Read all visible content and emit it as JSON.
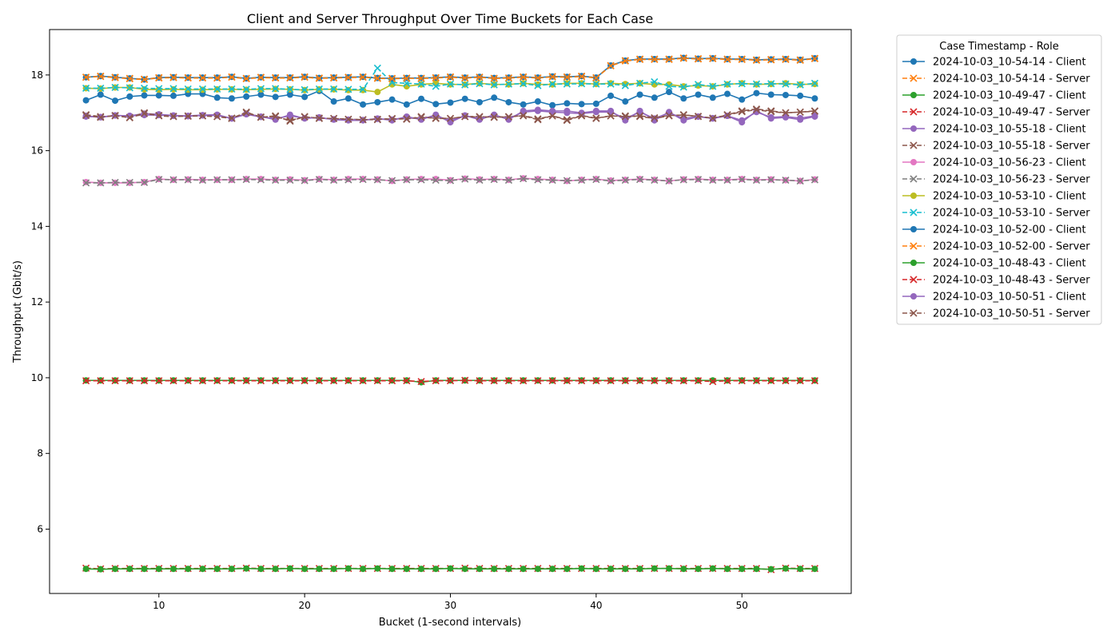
{
  "chart_data": {
    "type": "line",
    "title": "Client and Server Throughput Over Time Buckets for Each Case",
    "xlabel": "Bucket (1-second intervals)",
    "ylabel": "Throughput (Gbit/s)",
    "xlim": [
      2.5,
      57.5
    ],
    "ylim": [
      4.3,
      19.2
    ],
    "xticks": [
      10,
      20,
      30,
      40,
      50
    ],
    "yticks": [
      6,
      8,
      10,
      12,
      14,
      16,
      18
    ],
    "grid": false,
    "legend_title": "Case Timestamp - Role",
    "legend_placement": "outside-right",
    "x": [
      5,
      6,
      7,
      8,
      9,
      10,
      11,
      12,
      13,
      14,
      15,
      16,
      17,
      18,
      19,
      20,
      21,
      22,
      23,
      24,
      25,
      26,
      27,
      28,
      29,
      30,
      31,
      32,
      33,
      34,
      35,
      36,
      37,
      38,
      39,
      40,
      41,
      42,
      43,
      44,
      45,
      46,
      47,
      48,
      49,
      50,
      51,
      52,
      53,
      54,
      55
    ],
    "series": [
      {
        "name": "2024-10-03_10-54-14 - Client",
        "color": "#1f77b4",
        "style": "solid",
        "marker": "o",
        "values": [
          17.33,
          17.48,
          17.32,
          17.43,
          17.46,
          17.46,
          17.45,
          17.5,
          17.5,
          17.4,
          17.38,
          17.43,
          17.48,
          17.42,
          17.48,
          17.42,
          17.58,
          17.3,
          17.38,
          17.22,
          17.28,
          17.35,
          17.22,
          17.37,
          17.23,
          17.27,
          17.37,
          17.28,
          17.4,
          17.28,
          17.22,
          17.3,
          17.2,
          17.25,
          17.23,
          17.24,
          17.45,
          17.3,
          17.48,
          17.4,
          17.55,
          17.38,
          17.48,
          17.4,
          17.5,
          17.35,
          17.52,
          17.48,
          17.47,
          17.45,
          17.38
        ]
      },
      {
        "name": "2024-10-03_10-54-14 - Server",
        "color": "#ff7f0e",
        "style": "dashed",
        "marker": "x",
        "values": [
          17.94,
          17.97,
          17.94,
          17.91,
          17.89,
          17.93,
          17.94,
          17.93,
          17.93,
          17.92,
          17.95,
          17.91,
          17.94,
          17.93,
          17.93,
          17.95,
          17.92,
          17.93,
          17.94,
          17.95,
          17.92,
          17.91,
          17.92,
          17.91,
          17.93,
          17.95,
          17.92,
          17.94,
          17.91,
          17.92,
          17.95,
          17.92,
          17.96,
          17.95,
          17.97,
          17.93,
          18.25,
          18.38,
          18.42,
          18.42,
          18.42,
          18.45,
          18.43,
          18.44,
          18.42,
          18.42,
          18.4,
          18.41,
          18.42,
          18.4,
          18.44
        ]
      },
      {
        "name": "2024-10-03_10-49-47 - Client",
        "color": "#2ca02c",
        "style": "solid",
        "marker": "o",
        "values": [
          9.93,
          9.93,
          9.93,
          9.93,
          9.93,
          9.93,
          9.93,
          9.93,
          9.93,
          9.93,
          9.93,
          9.93,
          9.93,
          9.93,
          9.93,
          9.93,
          9.93,
          9.93,
          9.93,
          9.93,
          9.93,
          9.93,
          9.93,
          9.88,
          9.93,
          9.93,
          9.93,
          9.93,
          9.93,
          9.93,
          9.93,
          9.93,
          9.93,
          9.93,
          9.93,
          9.93,
          9.93,
          9.93,
          9.93,
          9.93,
          9.93,
          9.93,
          9.93,
          9.93,
          9.93,
          9.93,
          9.93,
          9.93,
          9.93,
          9.93,
          9.93
        ]
      },
      {
        "name": "2024-10-03_10-49-47 - Server",
        "color": "#d62728",
        "style": "dashed",
        "marker": "x",
        "values": [
          4.97,
          4.95,
          4.96,
          4.96,
          4.96,
          4.96,
          4.96,
          4.96,
          4.96,
          4.96,
          4.96,
          4.97,
          4.96,
          4.96,
          4.96,
          4.96,
          4.96,
          4.96,
          4.96,
          4.96,
          4.96,
          4.96,
          4.96,
          4.96,
          4.96,
          4.96,
          4.97,
          4.96,
          4.96,
          4.96,
          4.96,
          4.96,
          4.96,
          4.96,
          4.96,
          4.96,
          4.96,
          4.96,
          4.96,
          4.96,
          4.96,
          4.96,
          4.96,
          4.96,
          4.96,
          4.96,
          4.96,
          4.93,
          4.97,
          4.96,
          4.96
        ]
      },
      {
        "name": "2024-10-03_10-55-18 - Client",
        "color": "#9467bd",
        "style": "solid",
        "marker": "o",
        "values": [
          16.92,
          16.88,
          16.93,
          16.92,
          16.98,
          16.96,
          16.93,
          16.92,
          16.94,
          16.95,
          16.85,
          16.98,
          16.9,
          16.82,
          16.95,
          16.85,
          16.88,
          16.82,
          16.8,
          16.8,
          16.85,
          16.8,
          16.9,
          16.82,
          16.95,
          16.75,
          16.93,
          16.82,
          16.95,
          16.82,
          17.05,
          17.08,
          17.05,
          17.05,
          17.0,
          17.05,
          17.05,
          16.8,
          17.05,
          16.8,
          17.02,
          16.8,
          16.9,
          16.85,
          16.92,
          16.75,
          17.05,
          16.85,
          16.88,
          16.82,
          16.9
        ]
      },
      {
        "name": "2024-10-03_10-55-18 - Server",
        "color": "#8c564b",
        "style": "dashed",
        "marker": "x",
        "values": [
          16.95,
          16.9,
          16.92,
          16.88,
          17.0,
          16.92,
          16.9,
          16.92,
          16.92,
          16.9,
          16.85,
          17.02,
          16.88,
          16.92,
          16.78,
          16.9,
          16.85,
          16.85,
          16.83,
          16.82,
          16.82,
          16.85,
          16.83,
          16.9,
          16.85,
          16.85,
          16.9,
          16.9,
          16.88,
          16.9,
          16.92,
          16.82,
          16.92,
          16.8,
          16.92,
          16.85,
          16.92,
          16.92,
          16.9,
          16.85,
          16.92,
          16.95,
          16.9,
          16.85,
          16.95,
          17.05,
          17.1,
          17.05,
          17.0,
          17.02,
          17.05
        ]
      },
      {
        "name": "2024-10-03_10-56-23 - Client",
        "color": "#e377c2",
        "style": "solid",
        "marker": "o",
        "values": [
          15.17,
          15.15,
          15.15,
          15.15,
          15.17,
          15.25,
          15.23,
          15.24,
          15.23,
          15.23,
          15.23,
          15.25,
          15.25,
          15.23,
          15.24,
          15.22,
          15.25,
          15.23,
          15.25,
          15.25,
          15.24,
          15.2,
          15.24,
          15.25,
          15.25,
          15.22,
          15.26,
          15.24,
          15.25,
          15.23,
          15.27,
          15.25,
          15.23,
          15.2,
          15.23,
          15.25,
          15.21,
          15.23,
          15.25,
          15.23,
          15.2,
          15.24,
          15.25,
          15.23,
          15.23,
          15.25,
          15.23,
          15.24,
          15.22,
          15.2,
          15.24
        ]
      },
      {
        "name": "2024-10-03_10-56-23 - Server",
        "color": "#7f7f7f",
        "style": "dashed",
        "marker": "x",
        "values": [
          15.15,
          15.15,
          15.16,
          15.16,
          15.16,
          15.24,
          15.23,
          15.23,
          15.22,
          15.23,
          15.23,
          15.24,
          15.23,
          15.22,
          15.22,
          15.21,
          15.24,
          15.22,
          15.23,
          15.24,
          15.23,
          15.21,
          15.23,
          15.23,
          15.22,
          15.21,
          15.25,
          15.22,
          15.24,
          15.22,
          15.26,
          15.23,
          15.22,
          15.21,
          15.22,
          15.24,
          15.2,
          15.22,
          15.24,
          15.22,
          15.2,
          15.23,
          15.24,
          15.22,
          15.22,
          15.24,
          15.22,
          15.23,
          15.22,
          15.2,
          15.23
        ]
      },
      {
        "name": "2024-10-03_10-53-10 - Client",
        "color": "#bcbd22",
        "style": "solid",
        "marker": "o",
        "values": [
          17.65,
          17.64,
          17.67,
          17.67,
          17.62,
          17.61,
          17.62,
          17.61,
          17.61,
          17.62,
          17.62,
          17.61,
          17.62,
          17.63,
          17.62,
          17.6,
          17.62,
          17.62,
          17.6,
          17.6,
          17.55,
          17.75,
          17.7,
          17.75,
          17.78,
          17.75,
          17.75,
          17.78,
          17.75,
          17.75,
          17.78,
          17.75,
          17.75,
          17.78,
          17.78,
          17.76,
          17.78,
          17.76,
          17.78,
          17.75,
          17.75,
          17.7,
          17.72,
          17.7,
          17.75,
          17.78,
          17.75,
          17.76,
          17.78,
          17.75,
          17.76
        ]
      },
      {
        "name": "2024-10-03_10-53-10 - Server",
        "color": "#17becf",
        "style": "dashed",
        "marker": "x",
        "values": [
          17.65,
          17.65,
          17.67,
          17.66,
          17.65,
          17.64,
          17.64,
          17.63,
          17.63,
          17.63,
          17.63,
          17.62,
          17.64,
          17.64,
          17.62,
          17.61,
          17.63,
          17.63,
          17.62,
          17.62,
          18.18,
          17.8,
          17.78,
          17.76,
          17.7,
          17.76,
          17.74,
          17.77,
          17.74,
          17.76,
          17.77,
          17.72,
          17.76,
          17.76,
          17.77,
          17.76,
          17.76,
          17.72,
          17.78,
          17.82,
          17.7,
          17.68,
          17.75,
          17.7,
          17.76,
          17.77,
          17.76,
          17.77,
          17.76,
          17.74,
          17.78
        ]
      },
      {
        "name": "2024-10-03_10-52-00 - Client",
        "color": "#1f77b4",
        "style": "solid",
        "marker": "o",
        "values": [
          17.94,
          17.97,
          17.94,
          17.91,
          17.88,
          17.93,
          17.94,
          17.93,
          17.93,
          17.93,
          17.95,
          17.91,
          17.94,
          17.93,
          17.93,
          17.95,
          17.92,
          17.93,
          17.94,
          17.95,
          17.92,
          17.91,
          17.92,
          17.92,
          17.93,
          17.95,
          17.93,
          17.95,
          17.92,
          17.93,
          17.95,
          17.93,
          17.96,
          17.95,
          17.97,
          17.93,
          18.25,
          18.38,
          18.42,
          18.42,
          18.42,
          18.45,
          18.43,
          18.44,
          18.42,
          18.42,
          18.4,
          18.41,
          18.42,
          18.4,
          18.44
        ]
      },
      {
        "name": "2024-10-03_10-52-00 - Server",
        "color": "#ff7f0e",
        "style": "dashed",
        "marker": "x",
        "values": [
          17.94,
          17.96,
          17.93,
          17.9,
          17.88,
          17.92,
          17.93,
          17.92,
          17.92,
          17.92,
          17.94,
          17.9,
          17.93,
          17.92,
          17.92,
          17.94,
          17.91,
          17.92,
          17.93,
          17.94,
          17.91,
          17.9,
          17.91,
          17.91,
          17.92,
          17.94,
          17.92,
          17.94,
          17.91,
          17.92,
          17.94,
          17.92,
          17.95,
          17.94,
          17.96,
          17.92,
          18.24,
          18.37,
          18.41,
          18.41,
          18.41,
          18.44,
          18.42,
          18.43,
          18.41,
          18.41,
          18.39,
          18.4,
          18.41,
          18.39,
          18.43
        ]
      },
      {
        "name": "2024-10-03_10-48-43 - Client",
        "color": "#2ca02c",
        "style": "solid",
        "marker": "o",
        "values": [
          4.95,
          4.94,
          4.95,
          4.95,
          4.95,
          4.95,
          4.95,
          4.95,
          4.95,
          4.95,
          4.95,
          4.96,
          4.95,
          4.95,
          4.96,
          4.95,
          4.95,
          4.95,
          4.96,
          4.95,
          4.96,
          4.95,
          4.95,
          4.95,
          4.95,
          4.96,
          4.95,
          4.95,
          4.95,
          4.95,
          4.95,
          4.95,
          4.95,
          4.95,
          4.96,
          4.95,
          4.95,
          4.95,
          4.95,
          4.96,
          4.96,
          4.95,
          4.95,
          4.96,
          4.95,
          4.95,
          4.95,
          4.94,
          4.96,
          4.95,
          4.95
        ]
      },
      {
        "name": "2024-10-03_10-48-43 - Server",
        "color": "#d62728",
        "style": "dashed",
        "marker": "x",
        "values": [
          9.92,
          9.92,
          9.92,
          9.92,
          9.92,
          9.92,
          9.92,
          9.92,
          9.92,
          9.92,
          9.92,
          9.92,
          9.92,
          9.92,
          9.92,
          9.92,
          9.92,
          9.92,
          9.92,
          9.92,
          9.92,
          9.92,
          9.92,
          9.9,
          9.92,
          9.92,
          9.93,
          9.92,
          9.92,
          9.92,
          9.92,
          9.92,
          9.92,
          9.92,
          9.92,
          9.92,
          9.92,
          9.92,
          9.92,
          9.92,
          9.92,
          9.92,
          9.92,
          9.9,
          9.92,
          9.92,
          9.92,
          9.92,
          9.92,
          9.92,
          9.92
        ]
      },
      {
        "name": "2024-10-03_10-50-51 - Client",
        "color": "#9467bd",
        "style": "solid",
        "marker": "o",
        "values": [
          16.9,
          16.89,
          16.93,
          16.92,
          16.94,
          16.94,
          16.92,
          16.91,
          16.93,
          16.93,
          16.85,
          16.96,
          16.89,
          16.85,
          16.92,
          16.86,
          16.87,
          16.83,
          16.82,
          16.81,
          16.84,
          16.82,
          16.88,
          16.84,
          16.92,
          16.8,
          16.92,
          16.85,
          16.93,
          16.85,
          17.02,
          17.05,
          17.02,
          17.0,
          16.98,
          17.02,
          17.02,
          16.85,
          17.02,
          16.85,
          17.0,
          16.85,
          16.9,
          16.86,
          16.92,
          16.8,
          17.02,
          16.88,
          16.9,
          16.86,
          16.92
        ]
      },
      {
        "name": "2024-10-03_10-50-51 - Server",
        "color": "#8c564b",
        "style": "dashed",
        "marker": "x",
        "values": [
          16.93,
          16.88,
          16.93,
          16.87,
          16.98,
          16.93,
          16.91,
          16.91,
          16.92,
          16.9,
          16.86,
          17.0,
          16.89,
          16.9,
          16.8,
          16.89,
          16.86,
          16.85,
          16.83,
          16.82,
          16.83,
          16.84,
          16.84,
          16.88,
          16.86,
          16.85,
          16.9,
          16.89,
          16.89,
          16.89,
          16.93,
          16.84,
          16.92,
          16.82,
          16.93,
          16.86,
          16.92,
          16.9,
          16.92,
          16.87,
          16.93,
          16.94,
          16.91,
          16.86,
          16.94,
          17.03,
          17.08,
          17.03,
          17.0,
          17.02,
          17.04
        ]
      }
    ]
  }
}
